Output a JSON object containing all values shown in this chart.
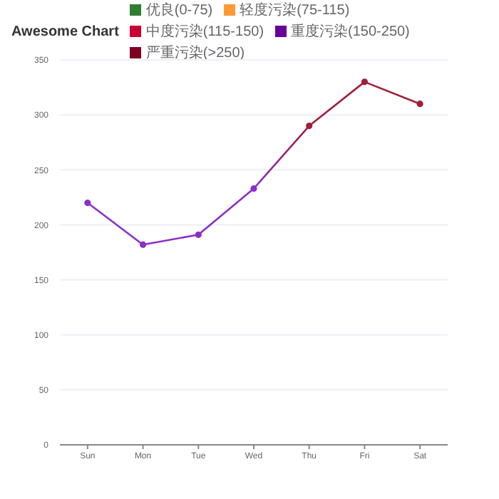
{
  "chart_data": {
    "type": "line",
    "title": "Awesome Chart",
    "categories": [
      "Sun",
      "Mon",
      "Tue",
      "Wed",
      "Thu",
      "Fri",
      "Sat"
    ],
    "series": [
      {
        "name": "优良(0-75)",
        "color": "#2e7d32",
        "values": [
          null,
          null,
          null,
          null,
          null,
          null,
          null
        ]
      },
      {
        "name": "轻度污染(75-115)",
        "color": "#ff9933",
        "values": [
          null,
          null,
          null,
          null,
          null,
          null,
          null
        ]
      },
      {
        "name": "中度污染(115-150)",
        "color": "#cc0033",
        "values": [
          null,
          null,
          null,
          null,
          null,
          null,
          null
        ]
      },
      {
        "name": "重度污染(150-250)",
        "color": "#660099",
        "values": [
          null,
          null,
          null,
          null,
          null,
          null,
          null
        ]
      },
      {
        "name": "严重污染(>250)",
        "color": "#7e0023",
        "values": [
          null,
          null,
          null,
          null,
          null,
          null,
          null
        ]
      },
      {
        "colors": [
          "#8b2fc9",
          "#8b2fc9",
          "#8b2fc9",
          "#8b2fc9",
          "#a01f3c",
          "#a01f3c",
          "#a01f3c"
        ],
        "values": [
          220,
          182,
          191,
          233,
          290,
          330,
          310
        ]
      }
    ],
    "ylim": [
      0,
      350
    ],
    "yticks": [
      0,
      50,
      100,
      150,
      200,
      250,
      300,
      350
    ],
    "grid": "y",
    "legend": "top",
    "marker": "circle",
    "line_style": "solid"
  }
}
